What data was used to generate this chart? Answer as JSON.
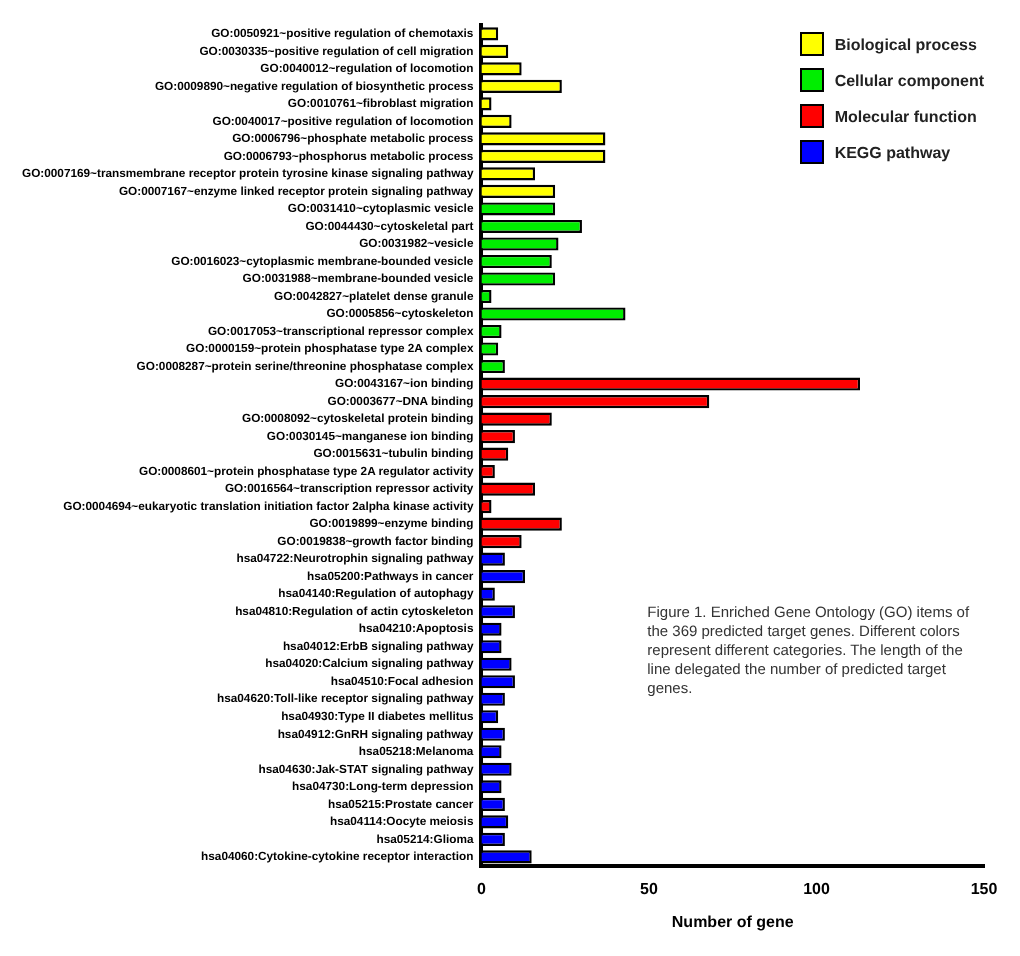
{
  "chart_data": {
    "type": "bar",
    "orientation": "horizontal",
    "xlabel": "Number of gene",
    "xlim": [
      0,
      150
    ],
    "xticks": [
      0,
      50,
      100,
      150
    ],
    "grid": false,
    "legend": "top right",
    "categories": [
      "GO:0050921~positive regulation of chemotaxis",
      "GO:0030335~positive regulation of cell migration",
      "GO:0040012~regulation of locomotion",
      "GO:0009890~negative regulation of biosynthetic process",
      "GO:0010761~fibroblast migration",
      "GO:0040017~positive regulation of locomotion",
      "GO:0006796~phosphate metabolic process",
      "GO:0006793~phosphorus metabolic process",
      "GO:0007169~transmembrane receptor protein tyrosine kinase signaling pathway",
      "GO:0007167~enzyme linked receptor protein signaling pathway",
      "GO:0031410~cytoplasmic vesicle",
      "GO:0044430~cytoskeletal part",
      "GO:0031982~vesicle",
      "GO:0016023~cytoplasmic membrane-bounded vesicle",
      "GO:0031988~membrane-bounded vesicle",
      "GO:0042827~platelet dense granule",
      "GO:0005856~cytoskeleton",
      "GO:0017053~transcriptional repressor complex",
      "GO:0000159~protein phosphatase type 2A complex",
      "GO:0008287~protein serine/threonine phosphatase complex",
      "GO:0043167~ion binding",
      "GO:0003677~DNA binding",
      "GO:0008092~cytoskeletal protein binding",
      "GO:0030145~manganese ion binding",
      "GO:0015631~tubulin binding",
      "GO:0008601~protein phosphatase type 2A regulator activity",
      "GO:0016564~transcription repressor activity",
      "GO:0004694~eukaryotic translation initiation factor 2alpha kinase activity",
      "GO:0019899~enzyme binding",
      "GO:0019838~growth factor binding",
      "hsa04722:Neurotrophin signaling pathway",
      "hsa05200:Pathways in cancer",
      "hsa04140:Regulation of autophagy",
      "hsa04810:Regulation of actin cytoskeleton",
      "hsa04210:Apoptosis",
      "hsa04012:ErbB signaling pathway",
      "hsa04020:Calcium signaling pathway",
      "hsa04510:Focal adhesion",
      "hsa04620:Toll-like receptor signaling pathway",
      "hsa04930:Type II diabetes mellitus",
      "hsa04912:GnRH signaling pathway",
      "hsa05218:Melanoma",
      "hsa04630:Jak-STAT signaling pathway",
      "hsa04730:Long-term depression",
      "hsa05215:Prostate cancer",
      "hsa04114:Oocyte meiosis",
      "hsa05214:Glioma",
      "hsa04060:Cytokine-cytokine receptor interaction"
    ],
    "series": [
      {
        "name": "Biological process",
        "color": "#ffff00",
        "values": [
          5,
          8,
          12,
          24,
          3,
          9,
          37,
          37,
          16,
          22,
          null,
          null,
          null,
          null,
          null,
          null,
          null,
          null,
          null,
          null,
          null,
          null,
          null,
          null,
          null,
          null,
          null,
          null,
          null,
          null,
          null,
          null,
          null,
          null,
          null,
          null,
          null,
          null,
          null,
          null,
          null,
          null,
          null,
          null,
          null,
          null,
          null,
          null
        ]
      },
      {
        "name": "Cellular component",
        "color": "#00ee00",
        "values": [
          null,
          null,
          null,
          null,
          null,
          null,
          null,
          null,
          null,
          null,
          22,
          30,
          23,
          21,
          22,
          3,
          43,
          6,
          5,
          7,
          null,
          null,
          null,
          null,
          null,
          null,
          null,
          null,
          null,
          null,
          null,
          null,
          null,
          null,
          null,
          null,
          null,
          null,
          null,
          null,
          null,
          null,
          null,
          null,
          null,
          null,
          null,
          null
        ]
      },
      {
        "name": "Molecular function",
        "color": "#ff0000",
        "values": [
          null,
          null,
          null,
          null,
          null,
          null,
          null,
          null,
          null,
          null,
          null,
          null,
          null,
          null,
          null,
          null,
          null,
          null,
          null,
          null,
          113,
          68,
          21,
          10,
          8,
          4,
          16,
          3,
          24,
          12,
          null,
          null,
          null,
          null,
          null,
          null,
          null,
          null,
          null,
          null,
          null,
          null,
          null,
          null,
          null,
          null,
          null,
          null
        ]
      },
      {
        "name": "KEGG pathway",
        "color": "#0000ff",
        "values": [
          null,
          null,
          null,
          null,
          null,
          null,
          null,
          null,
          null,
          null,
          null,
          null,
          null,
          null,
          null,
          null,
          null,
          null,
          null,
          null,
          null,
          null,
          null,
          null,
          null,
          null,
          null,
          null,
          null,
          null,
          7,
          13,
          4,
          10,
          6,
          6,
          9,
          10,
          7,
          5,
          7,
          6,
          9,
          6,
          7,
          8,
          7,
          15
        ]
      }
    ],
    "annotations": [
      "Figure 1. Enriched Gene Ontology (GO) items of the 369 predicted target genes. Different colors represent different categories. The length of the line delegated the number of predicted target genes."
    ]
  }
}
